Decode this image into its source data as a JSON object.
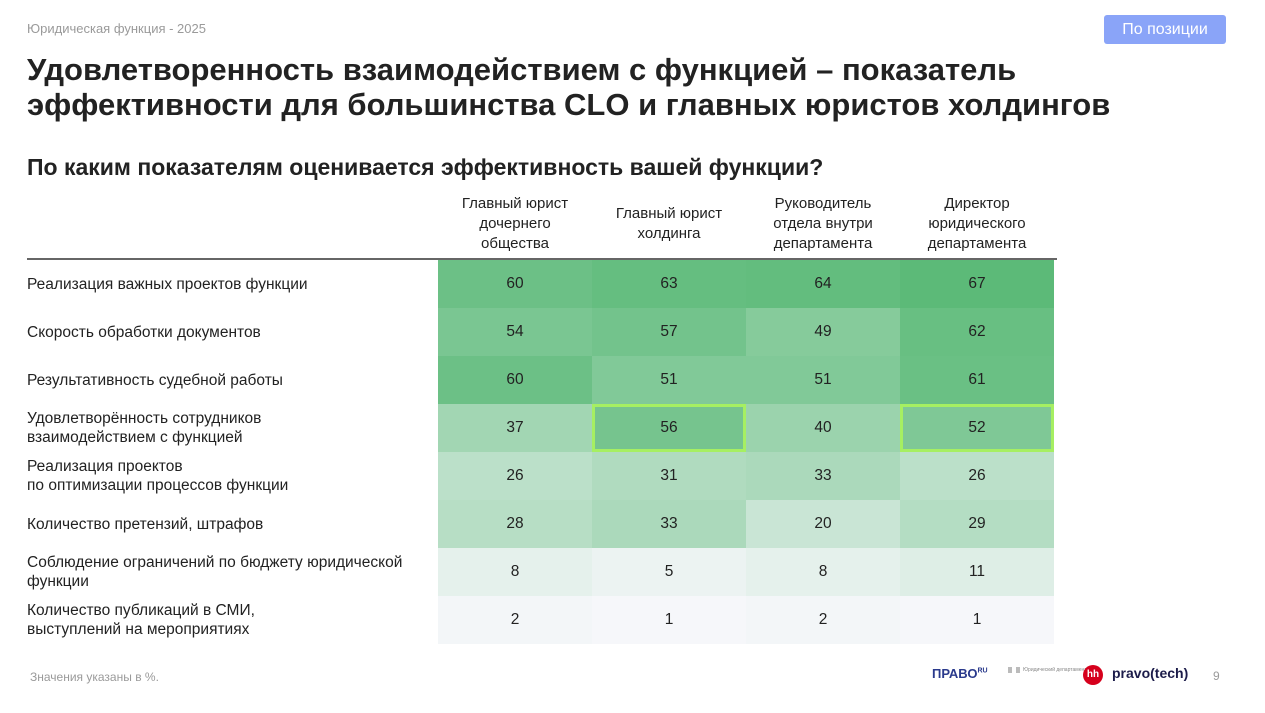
{
  "header": {
    "section": "Юридическая функция - 2025",
    "button": "По позиции",
    "title": "Удовлетворенность взаимодействием с функцией – показатель эффективности для большинства CLO и главных юристов холдингов",
    "question": "По каким показателям оценивается эффективность вашей функции?"
  },
  "table": {
    "columns": [
      "Главный юрист дочернего общества",
      "Главный юрист холдинга",
      "Руководитель отдела внутри департамента",
      "Директор юридического департамента"
    ],
    "rows": [
      {
        "label": "Реализация важных проектов функции",
        "values": [
          60,
          63,
          64,
          67
        ]
      },
      {
        "label": "Скорость обработки документов",
        "values": [
          54,
          57,
          49,
          62
        ]
      },
      {
        "label": "Результативность судебной работы",
        "values": [
          60,
          51,
          51,
          61
        ]
      },
      {
        "label": "Удовлетворённость сотрудников\nвзаимодействием с функцией",
        "values": [
          37,
          56,
          40,
          52
        ]
      },
      {
        "label": "Реализация проектов\nпо оптимизации процессов функции",
        "values": [
          26,
          31,
          33,
          26
        ]
      },
      {
        "label": "Количество претензий, штрафов",
        "values": [
          28,
          33,
          20,
          29
        ]
      },
      {
        "label": "Соблюдение ограничений по бюджету юридической функции",
        "values": [
          8,
          5,
          8,
          11
        ]
      },
      {
        "label": "Количество публикаций в СМИ,\nвыступлений на мероприятиях",
        "values": [
          2,
          1,
          2,
          1
        ]
      }
    ],
    "highlighted": [
      [
        3,
        1
      ],
      [
        3,
        3
      ]
    ]
  },
  "footer": {
    "note": "Значения указаны в %.",
    "logos": [
      "ПРАВО",
      "RU",
      "Юридический департамент",
      "hh",
      "pravo(tech)"
    ],
    "page": "9"
  }
}
